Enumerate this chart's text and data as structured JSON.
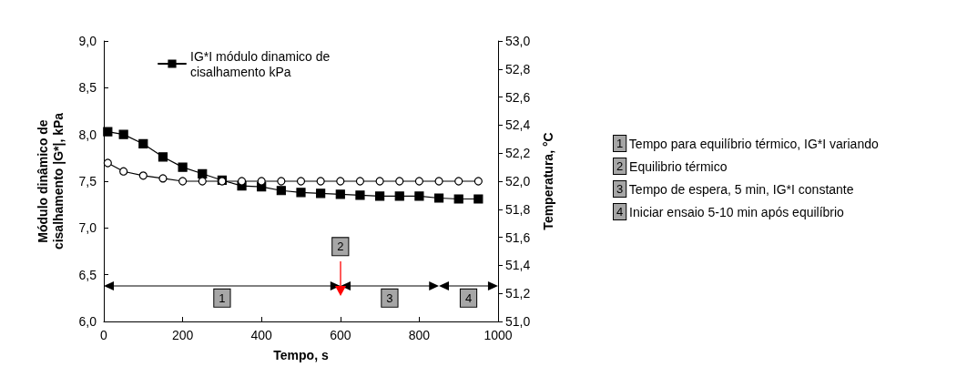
{
  "chart_data": {
    "type": "line",
    "xlabel": "Tempo, s",
    "ylabel": "Módulo dinâmico de cisalhamento |G*|, kPa",
    "y2label": "Temperatura, °C",
    "x": [
      10,
      50,
      100,
      150,
      200,
      250,
      300,
      350,
      400,
      450,
      500,
      550,
      600,
      650,
      700,
      750,
      800,
      850,
      900,
      950
    ],
    "series": [
      {
        "name": "IG*I módulo dinamico de cisalhamento kPa",
        "color": "#000000",
        "marker": "square",
        "values": [
          8.03,
          8.0,
          7.9,
          7.76,
          7.65,
          7.58,
          7.51,
          7.45,
          7.44,
          7.4,
          7.38,
          7.37,
          7.36,
          7.35,
          7.34,
          7.34,
          7.34,
          7.32,
          7.31,
          7.31
        ]
      },
      {
        "color": "#000000",
        "marker": "circle",
        "axis": "y2",
        "values": [
          52.13,
          52.07,
          52.04,
          52.02,
          52.0,
          52.0,
          52.0,
          52.0,
          52.0,
          52.0,
          52.0,
          52.0,
          52.0,
          52.0,
          52.0,
          52.0,
          52.0,
          52.0,
          52.0,
          52.0
        ]
      }
    ],
    "xlim": [
      0,
      1000
    ],
    "xticks": [
      0,
      200,
      400,
      600,
      800,
      1000
    ],
    "ylim": [
      6,
      9
    ],
    "yticks": [
      {
        "value": 6,
        "label": "6,0"
      },
      {
        "value": 6.5,
        "label": "6,5"
      },
      {
        "value": 7,
        "label": "7,0"
      },
      {
        "value": 7.5,
        "label": "7,5"
      },
      {
        "value": 8,
        "label": "8,0"
      },
      {
        "value": 8.5,
        "label": "8,5"
      },
      {
        "value": 9,
        "label": "9,0"
      }
    ],
    "y2lim": [
      51,
      53
    ],
    "y2ticks": [
      {
        "value": 51,
        "label": "51,0"
      },
      {
        "value": 51.2,
        "label": "51,2"
      },
      {
        "value": 51.4,
        "label": "51,4"
      },
      {
        "value": 51.6,
        "label": "51,6"
      },
      {
        "value": 51.8,
        "label": "51,8"
      },
      {
        "value": 52,
        "label": "52,0"
      },
      {
        "value": 52.2,
        "label": "52,2"
      },
      {
        "value": 52.4,
        "label": "52,4"
      },
      {
        "value": 52.6,
        "label": "52,6"
      },
      {
        "value": 52.8,
        "label": "52,8"
      },
      {
        "value": 53,
        "label": "53,0"
      }
    ],
    "annotations": [
      {
        "text": "2",
        "x": 600,
        "y": 6.8
      },
      {
        "text": "1",
        "x": 300,
        "y": 6.25
      },
      {
        "text": "3",
        "x": 725,
        "y": 6.25
      },
      {
        "text": "4",
        "x": 925,
        "y": 6.25
      },
      "1 Tempo para equilíbrio térmico, IG*I variando",
      "2 Equilibrio térmico",
      "3 Tempo de espera, 5 min, IG*I constante",
      "4 Iniciar ensaio 5-10 min após equilíbrio"
    ],
    "legend": "top left",
    "grid": false
  }
}
